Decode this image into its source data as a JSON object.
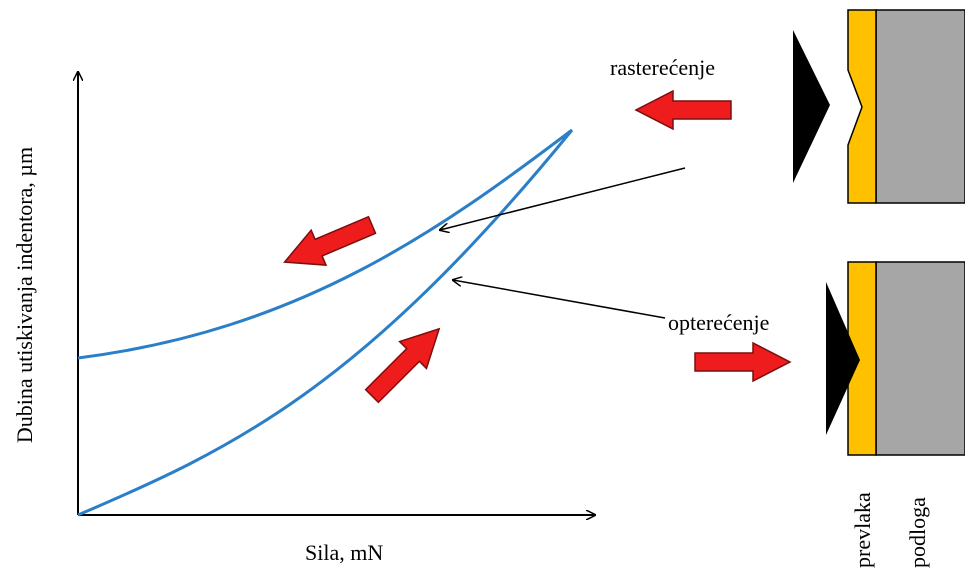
{
  "axes": {
    "x_label": "Sila, mN",
    "y_label": "Dubina utiskivanja indentora, µm"
  },
  "labels": {
    "unloading": "rasterećenje",
    "loading": "opterećenje"
  },
  "layers": {
    "coating": "prevlaka",
    "substrate": "podloga"
  }
}
